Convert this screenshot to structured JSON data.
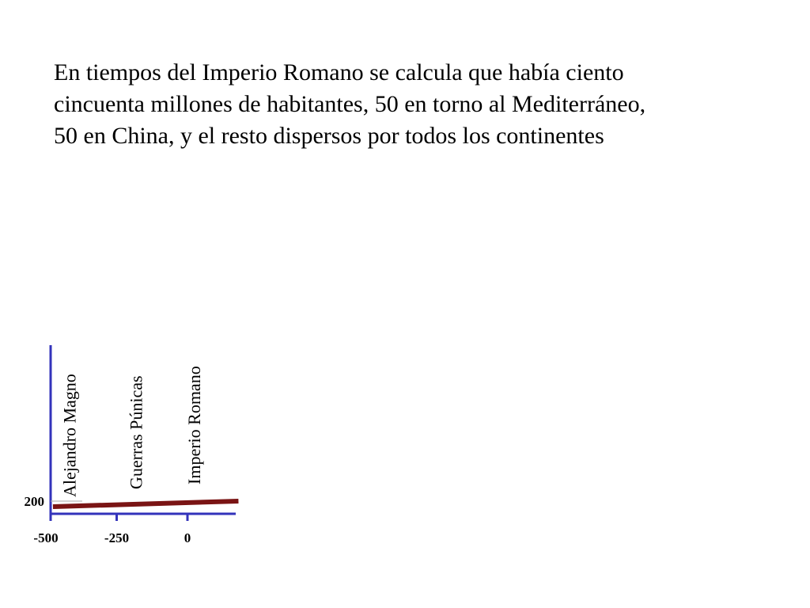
{
  "slide": {
    "text_lines": [
      "En tiempos del Imperio Romano se calcula que había ciento",
      "cincuenta millones de habitantes, 50 en torno al Mediterráneo,",
      "50 en China, y el resto dispersos por todos los continentes"
    ]
  },
  "chart_data": {
    "type": "line",
    "title": "",
    "xlabel": "",
    "ylabel": "",
    "x_ticks": [
      -500,
      -250,
      0
    ],
    "y_ticks": [
      200
    ],
    "xlim": [
      -500,
      180
    ],
    "ylim": [
      150,
      700
    ],
    "grid": false,
    "series": [
      {
        "x": [
          -475,
          180
        ],
        "y": [
          150,
          200
        ],
        "color": "#7a1414"
      }
    ],
    "annotations": [
      {
        "label": "Alejandro Magno",
        "x": -395
      },
      {
        "label": "Guerras Púnicas",
        "x": -160
      },
      {
        "label": "Imperio Romano",
        "x": 45
      }
    ],
    "axis_color": "#3333bb"
  }
}
